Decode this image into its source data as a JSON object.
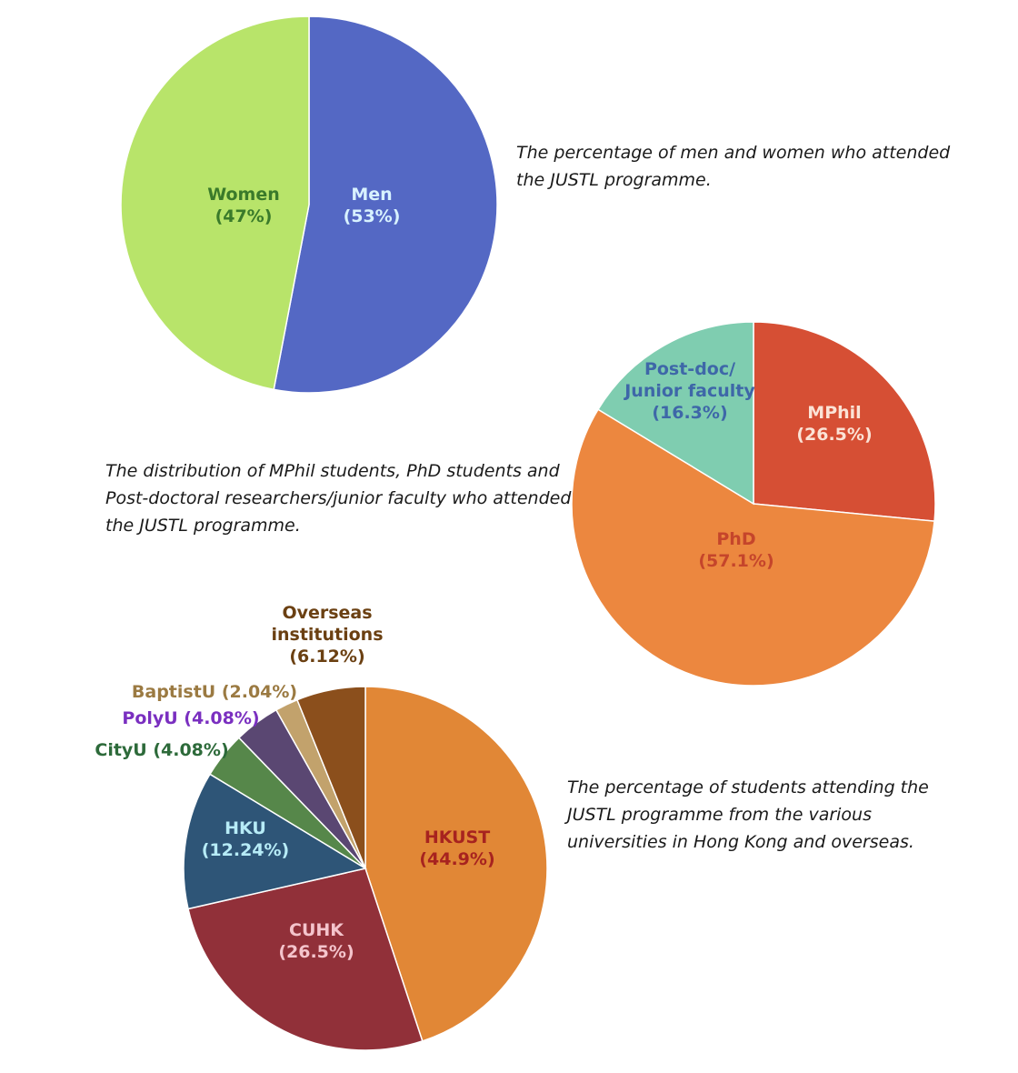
{
  "chart_data": [
    {
      "type": "pie",
      "labels": [
        "Men",
        "Women"
      ],
      "values": [
        53,
        47
      ],
      "value_labels": [
        "(53%)",
        "(47%)"
      ],
      "colors": [
        "#5468c4",
        "#b8e46a"
      ],
      "label_colors": [
        "#d8f2ff",
        "#3a7a2a"
      ],
      "caption": [
        "The percentage of men and women who attended",
        "the JUSTL programme."
      ]
    },
    {
      "type": "pie",
      "labels": [
        "MPhil",
        "PhD",
        "Post-doc/ Junior faculty"
      ],
      "label_lines": [
        [
          "MPhil"
        ],
        [
          "PhD"
        ],
        [
          "Post-doc/",
          "Junior faculty"
        ]
      ],
      "values": [
        26.5,
        57.1,
        16.3
      ],
      "value_labels": [
        "(26.5%)",
        "(57.1%)",
        "(16.3%)"
      ],
      "colors": [
        "#d64f34",
        "#ec873f",
        "#7fcdb0"
      ],
      "label_colors": [
        "#fbe3d6",
        "#c5452b",
        "#3e67a8"
      ],
      "caption": [
        "The distribution of MPhil students, PhD students and",
        "Post-doctoral researchers/junior faculty who attended",
        "the JUSTL programme."
      ]
    },
    {
      "type": "pie",
      "labels": [
        "HKUST",
        "CUHK",
        "HKU",
        "CityU",
        "PolyU",
        "BaptistU",
        "Overseas institutions"
      ],
      "label_lines": [
        [
          "HKUST"
        ],
        [
          "CUHK"
        ],
        [
          "HKU"
        ],
        [
          "CityU (4.08%)"
        ],
        [
          "PolyU (4.08%)"
        ],
        [
          "BaptistU (2.04%)"
        ],
        [
          "Overseas",
          "institutions"
        ]
      ],
      "values": [
        44.9,
        26.5,
        12.24,
        4.08,
        4.08,
        2.04,
        6.12
      ],
      "value_labels": [
        "(44.9%)",
        "(26.5%)",
        "(12.24%)",
        "",
        "",
        "",
        "(6.12%)"
      ],
      "colors": [
        "#e18736",
        "#913039",
        "#2e5577",
        "#56874a",
        "#5a4772",
        "#c2a26c",
        "#8b4f1c"
      ],
      "label_colors": [
        "#a7231f",
        "#f4c4cc",
        "#b7ecf7",
        "#2d6a3a",
        "#7a2fc0",
        "#9b7a42",
        "#6b4012"
      ],
      "caption": [
        "The percentage of students attending the",
        "JUSTL programme from the various",
        "universities in Hong Kong and overseas."
      ]
    }
  ]
}
